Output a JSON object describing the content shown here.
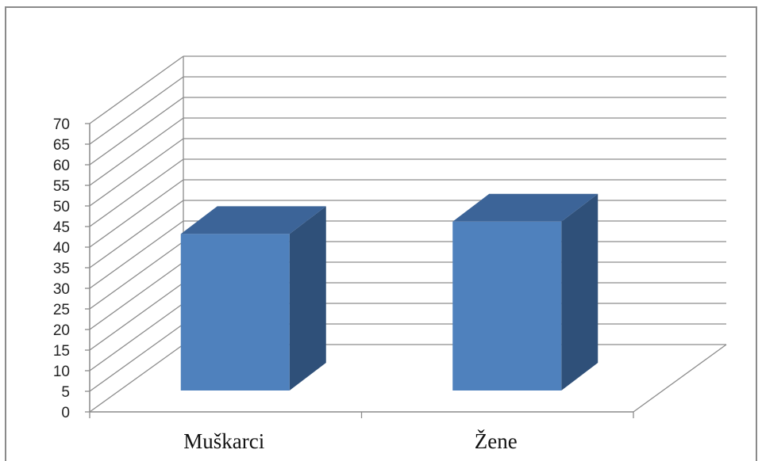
{
  "chart_data": {
    "type": "bar",
    "style": "3d-column",
    "categories": [
      "Muškarci",
      "Žene"
    ],
    "values": [
      38,
      41
    ],
    "title": "",
    "xlabel": "",
    "ylabel": "",
    "ylim": [
      0,
      70
    ],
    "yticks": [
      "0",
      "5",
      "10",
      "15",
      "20",
      "25",
      "30",
      "35",
      "40",
      "45",
      "50",
      "55",
      "60",
      "65",
      "70"
    ],
    "grid": true,
    "colors": {
      "front": "#4F81BD",
      "side": "#2F5079",
      "top": "#3C6498",
      "grid": "#8c8c8c",
      "frame": "#8a8a8a"
    }
  }
}
